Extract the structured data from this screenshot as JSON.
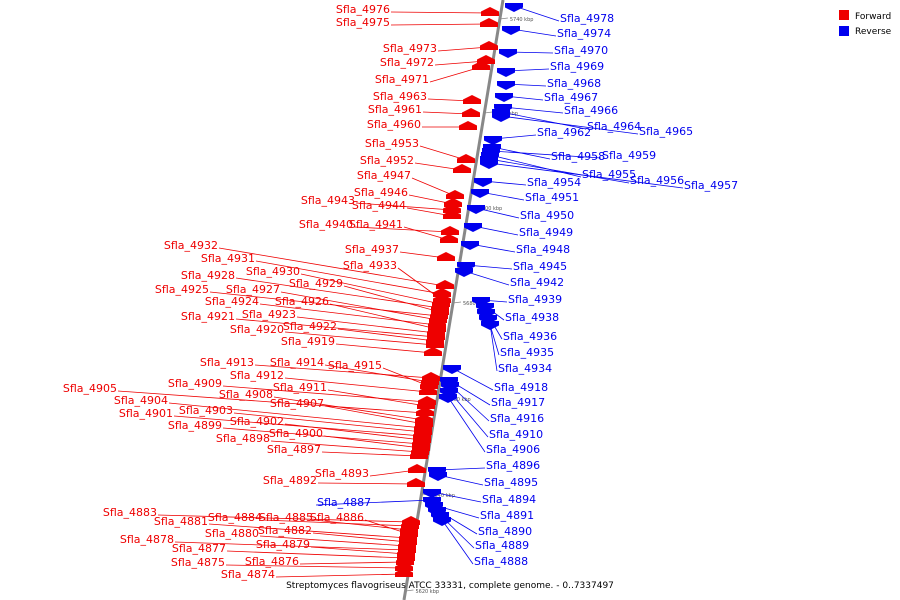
{
  "colors": {
    "forward": "#ee0000",
    "reverse": "#0000ee",
    "axis": "#888888"
  },
  "legend": {
    "forward": "Forward",
    "reverse": "Reverse"
  },
  "caption": "Streptomyces flavogriseus ATCC 33331, complete genome. - 0..7337497",
  "scale_marks": [
    "5740 kbp",
    "5720 kbp",
    "5700 kbp",
    "5680 kbp",
    "5660 kbp",
    "5640 kbp",
    "5620 kbp"
  ],
  "forward_genes": [
    "Sfla_4976",
    "Sfla_4975",
    "Sfla_4973",
    "Sfla_4972",
    "Sfla_4971",
    "Sfla_4963",
    "Sfla_4961",
    "Sfla_4960",
    "Sfla_4953",
    "Sfla_4952",
    "Sfla_4947",
    "Sfla_4946",
    "Sfla_4943",
    "Sfla_4944",
    "Sfla_4940",
    "Sfla_4941",
    "Sfla_4937",
    "Sfla_4932",
    "Sfla_4931",
    "Sfla_4933",
    "Sfla_4930",
    "Sfla_4928",
    "Sfla_4929",
    "Sfla_4925",
    "Sfla_4927",
    "Sfla_4924",
    "Sfla_4926",
    "Sfla_4923",
    "Sfla_4921",
    "Sfla_4922",
    "Sfla_4920",
    "Sfla_4919",
    "Sfla_4913",
    "Sfla_4914",
    "Sfla_4915",
    "Sfla_4912",
    "Sfla_4909",
    "Sfla_4911",
    "Sfla_4905",
    "Sfla_4908",
    "Sfla_4907",
    "Sfla_4904",
    "Sfla_4903",
    "Sfla_4901",
    "Sfla_4902",
    "Sfla_4899",
    "Sfla_4900",
    "Sfla_4898",
    "Sfla_4897",
    "Sfla_4893",
    "Sfla_4892",
    "Sfla_4883",
    "Sfla_4884",
    "Sfla_4885",
    "Sfla_4886",
    "Sfla_4881",
    "Sfla_4882",
    "Sfla_4880",
    "Sfla_4878",
    "Sfla_4879",
    "Sfla_4877",
    "Sfla_4876",
    "Sfla_4875",
    "Sfla_4874"
  ],
  "reverse_genes": [
    "Sfla_4978",
    "Sfla_4974",
    "Sfla_4970",
    "Sfla_4969",
    "Sfla_4968",
    "Sfla_4967",
    "Sfla_4966",
    "Sfla_4964",
    "Sfla_4965",
    "Sfla_4962",
    "Sfla_4958",
    "Sfla_4959",
    "Sfla_4955",
    "Sfla_4956",
    "Sfla_4957",
    "Sfla_4954",
    "Sfla_4951",
    "Sfla_4950",
    "Sfla_4949",
    "Sfla_4948",
    "Sfla_4945",
    "Sfla_4942",
    "Sfla_4939",
    "Sfla_4938",
    "Sfla_4936",
    "Sfla_4935",
    "Sfla_4934",
    "Sfla_4918",
    "Sfla_4917",
    "Sfla_4916",
    "Sfla_4910",
    "Sfla_4906",
    "Sfla_4896",
    "Sfla_4895",
    "Sfla_4894",
    "Sfla_4887",
    "Sfla_4891",
    "Sfla_4890",
    "Sfla_4889",
    "Sfla_4888"
  ]
}
